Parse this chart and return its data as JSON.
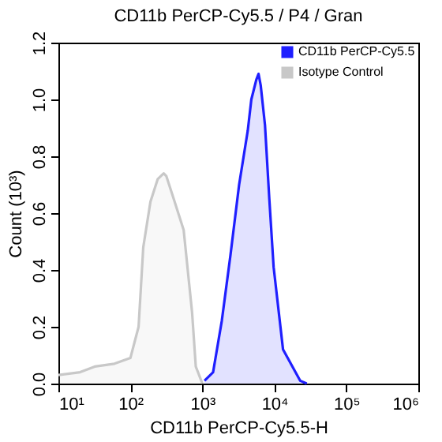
{
  "chart_data": {
    "type": "area",
    "title": "CD11b PerCP-Cy5.5 / P4 / Gran",
    "xlabel": "CD11b PerCP-Cy5.5-H",
    "ylabel": "Count (10³)",
    "series": [
      {
        "name": "CD11b PerCP-Cy5.5",
        "color": "#1f1fff",
        "x": [
          1070,
          1410,
          1860,
          2450,
          3240,
          4270,
          4790,
          5620,
          6030,
          6460,
          7410,
          8510,
          9770,
          13200,
          22900,
          28200
        ],
        "values": [
          0.01,
          0.04,
          0.22,
          0.45,
          0.7,
          0.89,
          1.0,
          1.07,
          1.09,
          1.05,
          0.91,
          0.65,
          0.41,
          0.12,
          0.01,
          0
        ]
      },
      {
        "name": "Isotype Control",
        "color": "#c8c8c8",
        "x": [
          10,
          20,
          32,
          60,
          100,
          130,
          151,
          190,
          240,
          290,
          316,
          400,
          550,
          720,
          810,
          1000
        ],
        "values": [
          0.03,
          0.04,
          0.06,
          0.07,
          0.09,
          0.2,
          0.48,
          0.64,
          0.72,
          0.74,
          0.73,
          0.65,
          0.54,
          0.25,
          0.06,
          0
        ]
      }
    ],
    "xlim": [
      10,
      1000000
    ],
    "xticks": [
      {
        "value": 10,
        "label": "10¹"
      },
      {
        "value": 100,
        "label": "10²"
      },
      {
        "value": 1000,
        "label": "10³"
      },
      {
        "value": 10000,
        "label": "10⁴"
      },
      {
        "value": 100000,
        "label": "10⁵"
      },
      {
        "value": 1000000,
        "label": "10⁶"
      }
    ],
    "ylim": [
      0,
      1.2
    ],
    "yticks": [
      {
        "value": 0,
        "label": "0.0"
      },
      0.2,
      0.4,
      0.6,
      0.8,
      {
        "value": 1,
        "label": "1.0"
      },
      1.2
    ],
    "log": "x",
    "grid": false,
    "legend": "top right",
    "marker": "none",
    "line_style": "solid"
  }
}
